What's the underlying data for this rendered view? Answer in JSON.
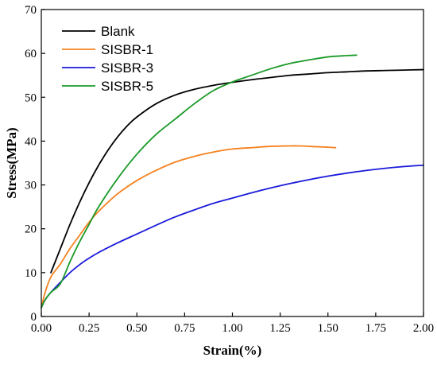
{
  "chart_data": {
    "type": "line",
    "xlabel": "Strain(%)",
    "ylabel": "Stress(MPa)",
    "xlim": [
      0,
      2.0
    ],
    "ylim": [
      0,
      70
    ],
    "xticks": [
      0.0,
      0.25,
      0.5,
      0.75,
      1.0,
      1.25,
      1.5,
      1.75,
      2.0
    ],
    "xtick_labels": [
      "0.00",
      "0.25",
      "0.50",
      "0.75",
      "1.00",
      "1.25",
      "1.50",
      "1.75",
      "2.00"
    ],
    "yticks": [
      0,
      10,
      20,
      30,
      40,
      50,
      60,
      70
    ],
    "ytick_labels": [
      "0",
      "10",
      "20",
      "30",
      "40",
      "50",
      "60",
      "70"
    ],
    "grid": false,
    "legend_position": "top-left",
    "series": [
      {
        "name": "Blank",
        "color": "#000000",
        "x": [
          0.05,
          0.1,
          0.15,
          0.2,
          0.25,
          0.3,
          0.35,
          0.4,
          0.45,
          0.5,
          0.6,
          0.7,
          0.8,
          0.9,
          1.0,
          1.1,
          1.2,
          1.3,
          1.4,
          1.5,
          1.6,
          1.7,
          1.8,
          1.9,
          2.0
        ],
        "y": [
          10.0,
          15.5,
          21.0,
          26.0,
          30.5,
          34.5,
          38.0,
          41.0,
          43.5,
          45.5,
          48.5,
          50.5,
          51.8,
          52.7,
          53.4,
          54.0,
          54.5,
          55.0,
          55.3,
          55.6,
          55.8,
          56.0,
          56.1,
          56.2,
          56.3
        ]
      },
      {
        "name": "SISBR-1",
        "color": "#f5821f",
        "x": [
          0.0,
          0.02,
          0.05,
          0.1,
          0.15,
          0.2,
          0.25,
          0.3,
          0.4,
          0.5,
          0.6,
          0.7,
          0.8,
          0.9,
          1.0,
          1.1,
          1.2,
          1.3,
          1.35,
          1.4,
          1.5,
          1.54
        ],
        "y": [
          2.0,
          5.5,
          9.0,
          12.0,
          15.5,
          18.5,
          21.5,
          24.0,
          28.0,
          31.0,
          33.3,
          35.2,
          36.5,
          37.5,
          38.2,
          38.5,
          38.8,
          38.9,
          38.9,
          38.8,
          38.6,
          38.5
        ]
      },
      {
        "name": "SISBR-3",
        "color": "#1a1adb",
        "x": [
          0.0,
          0.02,
          0.05,
          0.1,
          0.15,
          0.2,
          0.25,
          0.3,
          0.4,
          0.5,
          0.6,
          0.7,
          0.8,
          0.9,
          1.0,
          1.1,
          1.2,
          1.3,
          1.4,
          1.5,
          1.6,
          1.7,
          1.8,
          1.9,
          2.0
        ],
        "y": [
          2.0,
          3.8,
          5.5,
          7.8,
          10.0,
          11.8,
          13.3,
          14.6,
          16.8,
          18.8,
          20.8,
          22.7,
          24.3,
          25.8,
          27.0,
          28.2,
          29.3,
          30.3,
          31.2,
          32.0,
          32.7,
          33.3,
          33.8,
          34.2,
          34.5
        ]
      },
      {
        "name": "SISBR-5",
        "color": "#1a9a28",
        "x": [
          0.0,
          0.02,
          0.05,
          0.1,
          0.15,
          0.2,
          0.25,
          0.3,
          0.4,
          0.5,
          0.6,
          0.7,
          0.8,
          0.9,
          1.0,
          1.1,
          1.2,
          1.3,
          1.4,
          1.5,
          1.6,
          1.65
        ],
        "y": [
          2.0,
          3.8,
          5.5,
          7.5,
          12.5,
          17.0,
          21.0,
          25.0,
          31.5,
          37.0,
          41.5,
          45.0,
          48.5,
          51.5,
          53.5,
          55.0,
          56.5,
          57.7,
          58.5,
          59.2,
          59.5,
          59.6
        ]
      }
    ]
  }
}
